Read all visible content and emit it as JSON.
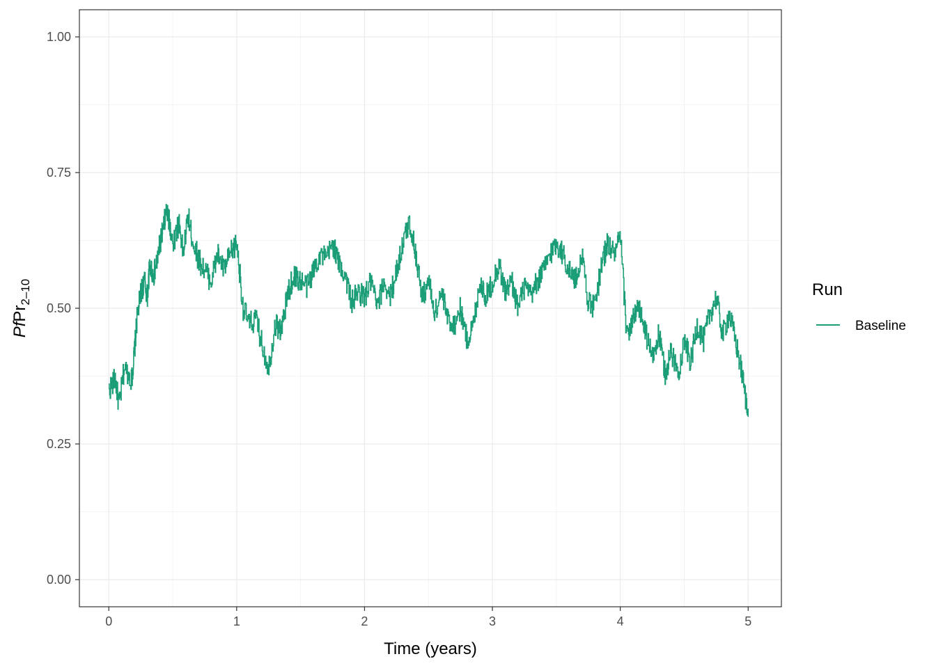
{
  "chart_data": {
    "type": "line",
    "title": "",
    "xlabel": "Time (years)",
    "ylabel": {
      "italic": "Pf",
      "main": "Pr",
      "subscript": "2–10"
    },
    "xlim": [
      -0.23,
      5.26
    ],
    "ylim": [
      -0.05,
      1.05
    ],
    "xticks": [
      0,
      1,
      2,
      3,
      4,
      5
    ],
    "xtick_labels": [
      "0",
      "1",
      "2",
      "3",
      "4",
      "5"
    ],
    "yticks": [
      0.0,
      0.25,
      0.5,
      0.75,
      1.0
    ],
    "ytick_labels": [
      "0.00",
      "0.25",
      "0.50",
      "0.75",
      "1.00"
    ],
    "grid": true,
    "legend": {
      "title": "Run",
      "position": "right"
    },
    "series": [
      {
        "name": "Baseline",
        "color": "#1b9e77",
        "x": [
          0.0,
          0.05,
          0.08,
          0.12,
          0.18,
          0.2,
          0.22,
          0.25,
          0.28,
          0.3,
          0.32,
          0.35,
          0.38,
          0.4,
          0.42,
          0.45,
          0.48,
          0.5,
          0.55,
          0.58,
          0.62,
          0.65,
          0.7,
          0.75,
          0.8,
          0.85,
          0.9,
          0.95,
          1.0,
          1.05,
          1.1,
          1.15,
          1.2,
          1.25,
          1.3,
          1.35,
          1.4,
          1.45,
          1.5,
          1.55,
          1.6,
          1.65,
          1.7,
          1.75,
          1.8,
          1.85,
          1.9,
          1.95,
          2.0,
          2.05,
          2.1,
          2.15,
          2.2,
          2.25,
          2.3,
          2.35,
          2.4,
          2.45,
          2.5,
          2.55,
          2.6,
          2.65,
          2.7,
          2.75,
          2.8,
          2.85,
          2.9,
          2.95,
          3.0,
          3.05,
          3.1,
          3.15,
          3.2,
          3.25,
          3.3,
          3.35,
          3.4,
          3.45,
          3.5,
          3.55,
          3.6,
          3.65,
          3.7,
          3.75,
          3.8,
          3.85,
          3.9,
          3.95,
          4.0,
          4.05,
          4.1,
          4.15,
          4.2,
          4.25,
          4.3,
          4.35,
          4.4,
          4.45,
          4.5,
          4.55,
          4.6,
          4.65,
          4.7,
          4.75,
          4.8,
          4.85,
          4.9,
          4.95,
          5.0
        ],
        "y": [
          0.35,
          0.37,
          0.32,
          0.39,
          0.37,
          0.42,
          0.48,
          0.53,
          0.55,
          0.52,
          0.58,
          0.56,
          0.59,
          0.62,
          0.64,
          0.68,
          0.65,
          0.62,
          0.66,
          0.6,
          0.67,
          0.63,
          0.59,
          0.57,
          0.55,
          0.6,
          0.57,
          0.6,
          0.62,
          0.5,
          0.47,
          0.48,
          0.43,
          0.39,
          0.47,
          0.46,
          0.53,
          0.56,
          0.55,
          0.54,
          0.57,
          0.6,
          0.59,
          0.62,
          0.58,
          0.56,
          0.51,
          0.53,
          0.52,
          0.55,
          0.5,
          0.55,
          0.52,
          0.57,
          0.62,
          0.66,
          0.6,
          0.52,
          0.55,
          0.49,
          0.53,
          0.48,
          0.47,
          0.5,
          0.44,
          0.47,
          0.55,
          0.52,
          0.55,
          0.58,
          0.53,
          0.55,
          0.5,
          0.54,
          0.52,
          0.55,
          0.57,
          0.6,
          0.62,
          0.6,
          0.57,
          0.55,
          0.6,
          0.51,
          0.5,
          0.58,
          0.62,
          0.6,
          0.63,
          0.45,
          0.48,
          0.5,
          0.45,
          0.41,
          0.45,
          0.38,
          0.42,
          0.38,
          0.44,
          0.4,
          0.47,
          0.44,
          0.49,
          0.52,
          0.45,
          0.49,
          0.44,
          0.38,
          0.3
        ]
      }
    ]
  }
}
